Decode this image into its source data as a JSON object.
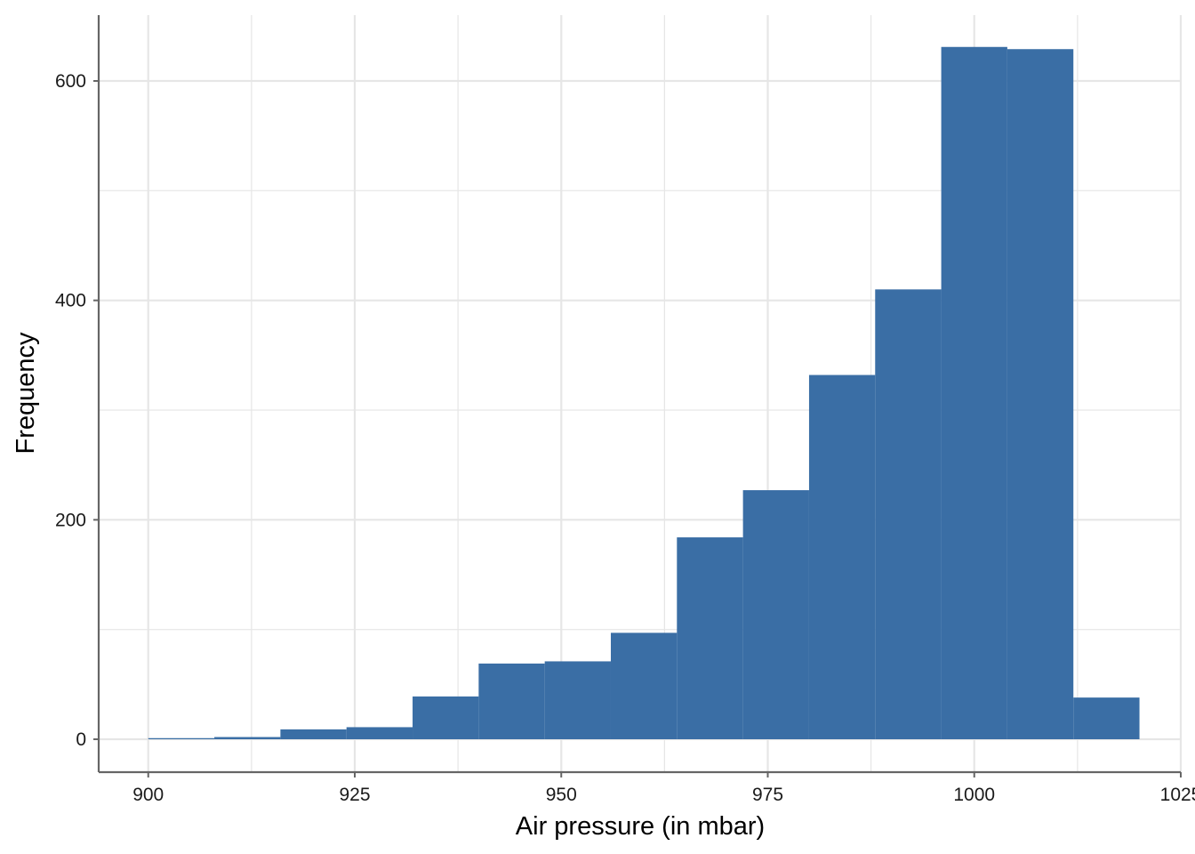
{
  "chart_data": {
    "type": "bar",
    "subtype": "histogram",
    "title": "",
    "xlabel": "Air pressure (in mbar)",
    "ylabel": "Frequency",
    "xlim": [
      894,
      1025
    ],
    "ylim": [
      -30,
      660
    ],
    "x_ticks": [
      900,
      925,
      950,
      975,
      1000,
      1025
    ],
    "y_ticks": [
      0,
      200,
      400,
      600
    ],
    "grid": true,
    "legend": "none",
    "bins": [
      {
        "start": 900,
        "end": 908,
        "count": 1
      },
      {
        "start": 908,
        "end": 916,
        "count": 2
      },
      {
        "start": 916,
        "end": 924,
        "count": 9
      },
      {
        "start": 924,
        "end": 932,
        "count": 11
      },
      {
        "start": 932,
        "end": 940,
        "count": 39
      },
      {
        "start": 940,
        "end": 948,
        "count": 69
      },
      {
        "start": 948,
        "end": 956,
        "count": 71
      },
      {
        "start": 956,
        "end": 964,
        "count": 97
      },
      {
        "start": 964,
        "end": 972,
        "count": 184
      },
      {
        "start": 972,
        "end": 980,
        "count": 227
      },
      {
        "start": 980,
        "end": 988,
        "count": 332
      },
      {
        "start": 988,
        "end": 996,
        "count": 410
      },
      {
        "start": 996,
        "end": 1004,
        "count": 631
      },
      {
        "start": 1004,
        "end": 1012,
        "count": 629
      },
      {
        "start": 1012,
        "end": 1020,
        "count": 38
      }
    ]
  },
  "colors": {
    "bar": "#3a6ea5",
    "grid": "#e6e6e6",
    "axis": "#666666",
    "text": "#1a1a1a"
  }
}
